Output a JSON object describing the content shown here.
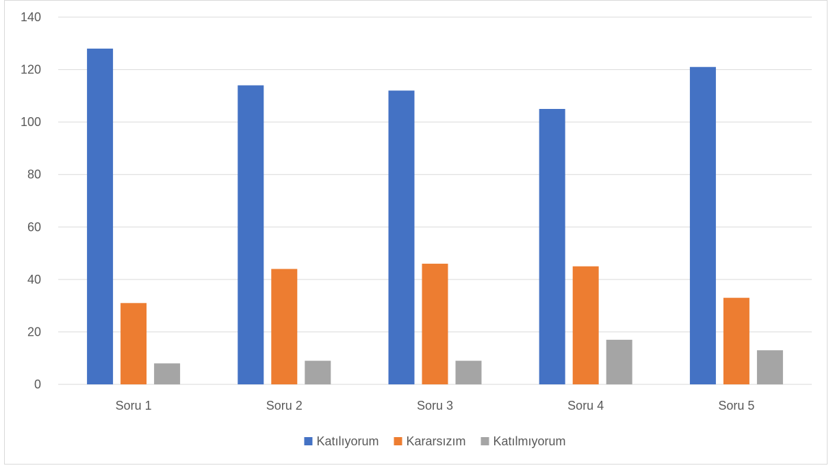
{
  "chart_data": {
    "type": "bar",
    "title": "",
    "xlabel": "",
    "ylabel": "",
    "categories": [
      "Soru 1",
      "Soru 2",
      "Soru 3",
      "Soru 4",
      "Soru 5"
    ],
    "series": [
      {
        "name": "Katılıyorum",
        "color": "#4472C4",
        "values": [
          128,
          114,
          112,
          105,
          121
        ]
      },
      {
        "name": "Kararsızım",
        "color": "#ED7D31",
        "values": [
          31,
          44,
          46,
          45,
          33
        ]
      },
      {
        "name": "Katılmıyorum",
        "color": "#A5A5A5",
        "values": [
          8,
          9,
          9,
          17,
          13
        ]
      }
    ],
    "ylim": [
      0,
      140
    ],
    "yticks": [
      "0",
      "20",
      "40",
      "60",
      "80",
      "100",
      "120",
      "140"
    ],
    "grid": true,
    "legend_position": "bottom",
    "colors": {
      "grid": "#d9d9d9",
      "axis": "#d9d9d9",
      "text": "#595959"
    }
  }
}
